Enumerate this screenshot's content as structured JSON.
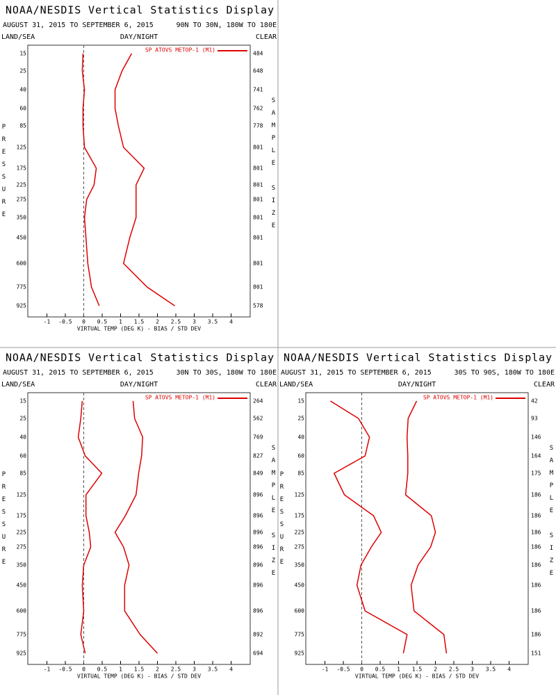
{
  "chart_data": [
    {
      "type": "line",
      "title": "NOAA/NESDIS Vertical Statistics Display",
      "subtitle": "AUGUST 31, 2015 TO SEPTEMBER 6, 2015",
      "region": "90N TO 30N, 180W TO 180E",
      "land_sea": "LAND/SEA",
      "day_night": "DAY/NIGHT",
      "clear": "CLEAR",
      "y_label": "PRESSURE",
      "y2_label": "SAMPLE SIZE",
      "x_label": "VIRTUAL TEMP (DEG K) - BIAS / STD DEV",
      "categories": [
        15,
        25,
        40,
        60,
        85,
        125,
        175,
        225,
        275,
        350,
        450,
        600,
        775,
        925
      ],
      "sample_size": [
        484,
        648,
        741,
        762,
        778,
        801,
        801,
        801,
        801,
        801,
        801,
        801,
        801,
        578
      ],
      "series": [
        {
          "name": "SP ATOVS METOP-1 (M1)",
          "color": "#dd0000",
          "bias": [
            -0.02,
            -0.04,
            0.02,
            -0.02,
            -0.02,
            0.02,
            0.34,
            0.28,
            0.08,
            0.02,
            0.06,
            0.11,
            0.21,
            0.42
          ],
          "std_dev": [
            1.3,
            1.04,
            0.85,
            0.85,
            0.94,
            1.08,
            1.64,
            1.42,
            1.42,
            1.42,
            1.25,
            1.08,
            1.72,
            2.47
          ]
        }
      ],
      "xlim": [
        -1.5,
        4.5
      ],
      "xticks": [
        -1.0,
        -0.5,
        0.0,
        0.5,
        1.0,
        1.5,
        2.0,
        2.5,
        3.0,
        3.5,
        4.0
      ]
    },
    {
      "type": "line",
      "title": "NOAA/NESDIS Vertical Statistics Display",
      "subtitle": "AUGUST 31, 2015 TO SEPTEMBER 6, 2015",
      "region": "30N TO 30S, 180W TO 180E",
      "land_sea": "LAND/SEA",
      "day_night": "DAY/NIGHT",
      "clear": "CLEAR",
      "y_label": "PRESSURE",
      "y2_label": "SAMPLE SIZE",
      "x_label": "VIRTUAL TEMP (DEG K) - BIAS / STD DEV",
      "categories": [
        15,
        25,
        40,
        60,
        85,
        125,
        175,
        225,
        275,
        350,
        450,
        600,
        775,
        925
      ],
      "sample_size": [
        264,
        562,
        769,
        827,
        849,
        896,
        896,
        896,
        896,
        896,
        896,
        896,
        892,
        694
      ],
      "series": [
        {
          "name": "SP ATOVS METOP-1 (M1)",
          "color": "#dd0000",
          "bias": [
            -0.04,
            -0.08,
            -0.15,
            0.04,
            0.49,
            0.06,
            0.06,
            0.15,
            0.19,
            0.0,
            -0.04,
            0.0,
            -0.08,
            0.04
          ],
          "std_dev": [
            1.34,
            1.38,
            1.6,
            1.57,
            1.49,
            1.42,
            1.13,
            0.85,
            1.08,
            1.23,
            1.11,
            1.11,
            1.53,
            2.0
          ]
        }
      ],
      "xlim": [
        -1.5,
        4.5
      ],
      "xticks": [
        -1.0,
        -0.5,
        0.0,
        0.5,
        1.0,
        1.5,
        2.0,
        2.5,
        3.0,
        3.5,
        4.0
      ]
    },
    {
      "type": "line",
      "title": "NOAA/NESDIS Vertical Statistics Display",
      "subtitle": "AUGUST 31, 2015 TO SEPTEMBER 6, 2015",
      "region": "30S TO 90S, 180W TO 180E",
      "land_sea": "LAND/SEA",
      "day_night": "DAY/NIGHT",
      "clear": "CLEAR",
      "y_label": "PRESSURE",
      "y2_label": "SAMPLE SIZE",
      "x_label": "VIRTUAL TEMP (DEG K) - BIAS / STD DEV",
      "categories": [
        15,
        25,
        40,
        60,
        85,
        125,
        175,
        225,
        275,
        350,
        450,
        600,
        775,
        925
      ],
      "sample_size": [
        42,
        93,
        146,
        164,
        175,
        186,
        186,
        186,
        186,
        186,
        186,
        186,
        186,
        151
      ],
      "series": [
        {
          "name": "SP ATOVS METOP-1 (M1)",
          "color": "#dd0000",
          "bias": [
            -0.85,
            -0.09,
            0.21,
            0.09,
            -0.75,
            -0.47,
            0.32,
            0.53,
            0.26,
            -0.02,
            -0.13,
            0.09,
            1.23,
            1.13
          ],
          "std_dev": [
            1.49,
            1.26,
            1.23,
            1.25,
            1.25,
            1.19,
            1.89,
            2.0,
            1.87,
            1.53,
            1.34,
            1.42,
            2.23,
            2.3
          ]
        }
      ],
      "xlim": [
        -1.5,
        4.5
      ],
      "xticks": [
        -1.0,
        -0.5,
        0.0,
        0.5,
        1.0,
        1.5,
        2.0,
        2.5,
        3.0,
        3.5,
        4.0
      ]
    }
  ]
}
